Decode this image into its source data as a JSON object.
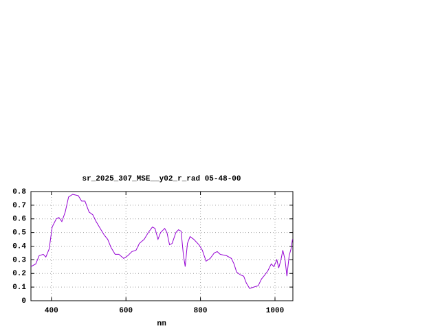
{
  "chart_data": {
    "type": "line",
    "title": "sr_2025_307_MSE__y02_r_rad 05-48-00",
    "x_label": "nm",
    "xlim": [
      345,
      1048
    ],
    "ylim": [
      0,
      0.8
    ],
    "xticks": [
      400,
      600,
      800,
      1000
    ],
    "yticks": [
      0,
      0.1,
      0.2,
      0.3,
      0.4,
      0.5,
      0.6,
      0.7,
      0.8
    ],
    "grid": true,
    "series": [
      {
        "color": "#9400d3",
        "x": [
          345,
          358,
          367,
          378,
          385,
          394,
          402,
          413,
          420,
          428,
          437,
          446,
          457,
          472,
          481,
          490,
          501,
          511,
          520,
          533,
          542,
          551,
          560,
          571,
          581,
          594,
          605,
          616,
          627,
          636,
          649,
          660,
          671,
          678,
          686,
          693,
          704,
          710,
          717,
          724,
          734,
          741,
          748,
          754,
          759,
          765,
          772,
          782,
          796,
          805,
          815,
          826,
          837,
          845,
          853,
          870,
          883,
          890,
          897,
          907,
          916,
          923,
          932,
          943,
          955,
          964,
          973,
          981,
          990,
          997,
          1005,
          1010,
          1016,
          1021,
          1027,
          1032,
          1038,
          1043,
          1047
        ],
        "values": [
          0.25,
          0.27,
          0.33,
          0.34,
          0.32,
          0.38,
          0.54,
          0.6,
          0.61,
          0.58,
          0.65,
          0.76,
          0.78,
          0.77,
          0.73,
          0.73,
          0.65,
          0.63,
          0.58,
          0.52,
          0.48,
          0.45,
          0.39,
          0.34,
          0.34,
          0.31,
          0.33,
          0.36,
          0.37,
          0.42,
          0.45,
          0.5,
          0.54,
          0.53,
          0.45,
          0.5,
          0.53,
          0.5,
          0.41,
          0.42,
          0.5,
          0.52,
          0.51,
          0.34,
          0.25,
          0.42,
          0.47,
          0.45,
          0.41,
          0.37,
          0.29,
          0.31,
          0.35,
          0.36,
          0.34,
          0.33,
          0.31,
          0.27,
          0.21,
          0.19,
          0.18,
          0.13,
          0.09,
          0.1,
          0.11,
          0.16,
          0.19,
          0.22,
          0.27,
          0.25,
          0.3,
          0.24,
          0.3,
          0.37,
          0.3,
          0.18,
          0.33,
          0.38,
          0.45
        ]
      }
    ]
  }
}
